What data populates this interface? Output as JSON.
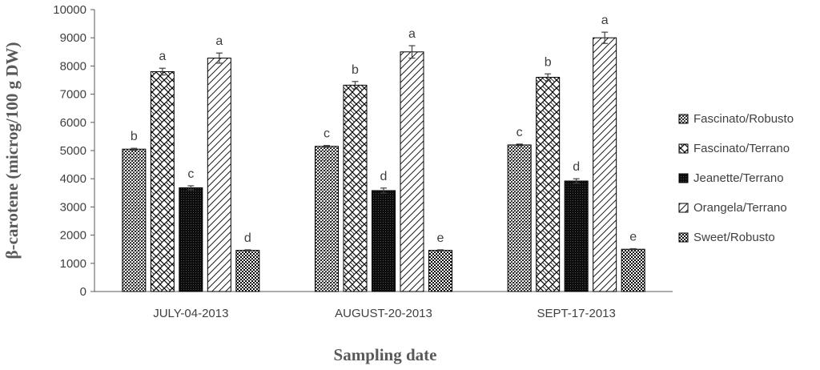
{
  "chart_data": {
    "type": "bar",
    "title": "",
    "xlabel": "Sampling date",
    "ylabel": "β-carotene  (microg/100 g DW)",
    "ylim": [
      0,
      10000
    ],
    "yticks": [
      "0",
      "1000",
      "2000",
      "3000",
      "4000",
      "5000",
      "6000",
      "7000",
      "8000",
      "9000",
      "10000"
    ],
    "categories": [
      "JULY-04-2013",
      "AUGUST-20-2013",
      "SEPT-17-2013"
    ],
    "legend_position": "right",
    "series": [
      {
        "name": "Fascinato/Robusto",
        "pattern": "dots",
        "values": [
          5050,
          5150,
          5200
        ],
        "errors": [
          30,
          30,
          30
        ],
        "labels": [
          "b",
          "c",
          "c"
        ]
      },
      {
        "name": "Fascinato/Terrano",
        "pattern": "weave",
        "values": [
          7800,
          7320,
          7600
        ],
        "errors": [
          120,
          130,
          120
        ],
        "labels": [
          "a",
          "b",
          "b"
        ]
      },
      {
        "name": "Jeanette/Terrano",
        "pattern": "dark",
        "values": [
          3680,
          3580,
          3920
        ],
        "errors": [
          70,
          90,
          80
        ],
        "labels": [
          "c",
          "d",
          "d"
        ]
      },
      {
        "name": "Orangela/Terrano",
        "pattern": "diag",
        "values": [
          8280,
          8500,
          9000
        ],
        "errors": [
          180,
          220,
          200
        ],
        "labels": [
          "a",
          "a",
          "a"
        ]
      },
      {
        "name": "Sweet/Robusto",
        "pattern": "check",
        "values": [
          1460,
          1460,
          1500
        ],
        "errors": [
          20,
          20,
          20
        ],
        "labels": [
          "d",
          "e",
          "e"
        ]
      }
    ]
  }
}
